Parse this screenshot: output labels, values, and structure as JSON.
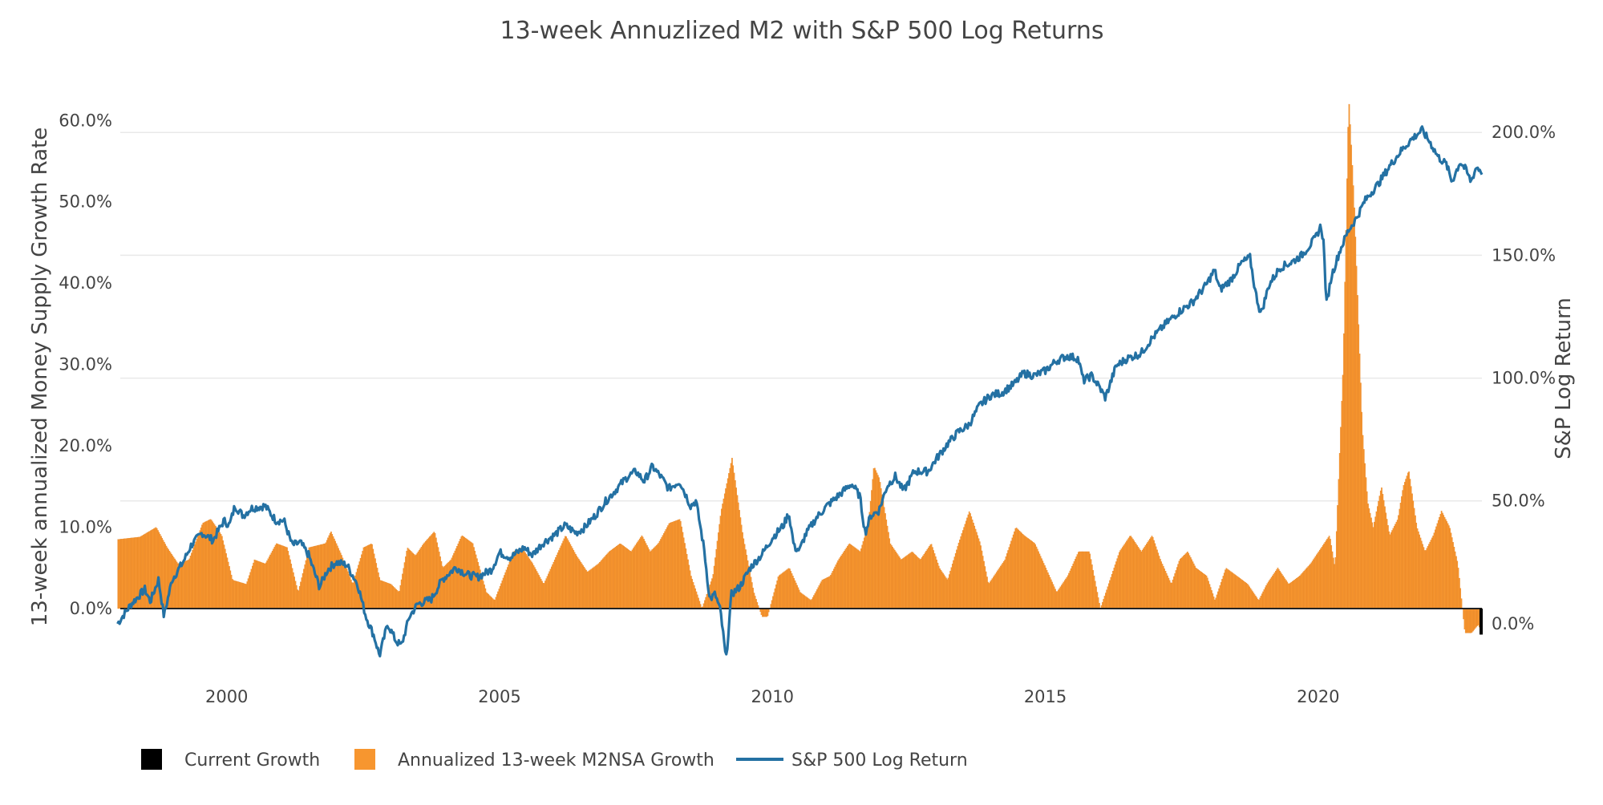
{
  "chart_data": {
    "type": "bar+line",
    "title": "13-week Annuzlized M2 with S&P 500 Log Returns",
    "x_axis": {
      "type": "date",
      "range": [
        1998.05,
        2023.0
      ],
      "tick_labels": [
        "2000",
        "2005",
        "2010",
        "2015",
        "2020"
      ],
      "tick_values": [
        2000,
        2005,
        2010,
        2015,
        2020
      ]
    },
    "y_left": {
      "label": "13-week annualized Money Supply Growth Rate",
      "range": [
        -7.0,
        62.0
      ],
      "tick_values": [
        0,
        10,
        20,
        30,
        40,
        50,
        60
      ],
      "tick_labels": [
        "0.0%",
        "10.0%",
        "20.0%",
        "30.0%",
        "40.0%",
        "50.0%",
        "60.0%"
      ]
    },
    "y_right": {
      "label": "S&P Log Return",
      "range": [
        -17.0,
        211.5
      ],
      "tick_values": [
        0,
        50,
        100,
        150,
        200
      ],
      "tick_labels": [
        "0.0%",
        "50.0%",
        "100.0%",
        "150.0%",
        "200.0%"
      ]
    },
    "legend": {
      "placement": "bottom-left",
      "items": [
        {
          "label": "Current Growth",
          "kind": "box",
          "color": "#000000"
        },
        {
          "label": "Annualized 13-week M2NSA Growth",
          "kind": "box",
          "color": "#f7962f"
        },
        {
          "label": "S&P 500 Log Return",
          "kind": "line",
          "color": "#2471a3"
        }
      ]
    },
    "series": [
      {
        "name": "Annualized 13-week M2NSA Growth",
        "type": "bar",
        "axis": "left",
        "color": "#f7962f",
        "points": [
          [
            1998.0,
            8.5
          ],
          [
            1998.4,
            8.8
          ],
          [
            1998.7,
            10
          ],
          [
            1998.9,
            7.5
          ],
          [
            1999.1,
            5.5
          ],
          [
            1999.3,
            6
          ],
          [
            1999.55,
            10.5
          ],
          [
            1999.7,
            11
          ],
          [
            1999.9,
            9
          ],
          [
            2000.1,
            3.5
          ],
          [
            2000.35,
            3
          ],
          [
            2000.5,
            6
          ],
          [
            2000.7,
            5.5
          ],
          [
            2000.9,
            8
          ],
          [
            2001.1,
            7.5
          ],
          [
            2001.3,
            2
          ],
          [
            2001.5,
            7.5
          ],
          [
            2001.8,
            8
          ],
          [
            2001.9,
            9.5
          ],
          [
            2002.1,
            6.5
          ],
          [
            2002.3,
            3
          ],
          [
            2002.5,
            7.5
          ],
          [
            2002.65,
            8
          ],
          [
            2002.8,
            3.5
          ],
          [
            2003.0,
            3
          ],
          [
            2003.15,
            2
          ],
          [
            2003.3,
            7.5
          ],
          [
            2003.45,
            6.5
          ],
          [
            2003.6,
            8
          ],
          [
            2003.8,
            9.5
          ],
          [
            2003.95,
            5
          ],
          [
            2004.1,
            6
          ],
          [
            2004.3,
            9
          ],
          [
            2004.5,
            8
          ],
          [
            2004.75,
            2
          ],
          [
            2004.9,
            1
          ],
          [
            2005.1,
            4.5
          ],
          [
            2005.25,
            7
          ],
          [
            2005.4,
            7.5
          ],
          [
            2005.6,
            5.5
          ],
          [
            2005.8,
            3
          ],
          [
            2006.0,
            6
          ],
          [
            2006.2,
            9
          ],
          [
            2006.4,
            6.5
          ],
          [
            2006.6,
            4.5
          ],
          [
            2006.8,
            5.5
          ],
          [
            2007.0,
            7
          ],
          [
            2007.2,
            8
          ],
          [
            2007.4,
            7
          ],
          [
            2007.6,
            9
          ],
          [
            2007.75,
            7
          ],
          [
            2007.9,
            8
          ],
          [
            2008.1,
            10.5
          ],
          [
            2008.3,
            11
          ],
          [
            2008.5,
            4
          ],
          [
            2008.7,
            0
          ],
          [
            2008.9,
            4
          ],
          [
            2009.05,
            12
          ],
          [
            2009.25,
            18.5
          ],
          [
            2009.45,
            9
          ],
          [
            2009.65,
            2
          ],
          [
            2009.8,
            -1
          ],
          [
            2009.9,
            -1
          ],
          [
            2010.1,
            4
          ],
          [
            2010.3,
            5
          ],
          [
            2010.5,
            2
          ],
          [
            2010.7,
            1
          ],
          [
            2010.9,
            3.5
          ],
          [
            2011.05,
            4
          ],
          [
            2011.2,
            6
          ],
          [
            2011.4,
            8
          ],
          [
            2011.6,
            7
          ],
          [
            2011.75,
            10.5
          ],
          [
            2011.85,
            17.5
          ],
          [
            2011.95,
            16
          ],
          [
            2012.15,
            8
          ],
          [
            2012.35,
            6
          ],
          [
            2012.55,
            7
          ],
          [
            2012.7,
            6
          ],
          [
            2012.9,
            8
          ],
          [
            2013.05,
            5
          ],
          [
            2013.2,
            3.5
          ],
          [
            2013.4,
            8
          ],
          [
            2013.6,
            12
          ],
          [
            2013.8,
            8
          ],
          [
            2013.95,
            3
          ],
          [
            2014.1,
            4.5
          ],
          [
            2014.25,
            6
          ],
          [
            2014.45,
            10
          ],
          [
            2014.6,
            9
          ],
          [
            2014.8,
            8
          ],
          [
            2015.0,
            5
          ],
          [
            2015.2,
            2
          ],
          [
            2015.4,
            4
          ],
          [
            2015.6,
            7
          ],
          [
            2015.8,
            7
          ],
          [
            2016.0,
            0
          ],
          [
            2016.2,
            4
          ],
          [
            2016.35,
            7
          ],
          [
            2016.55,
            9
          ],
          [
            2016.75,
            7
          ],
          [
            2016.95,
            9
          ],
          [
            2017.1,
            6
          ],
          [
            2017.3,
            3
          ],
          [
            2017.45,
            6
          ],
          [
            2017.6,
            7
          ],
          [
            2017.75,
            5
          ],
          [
            2017.95,
            4
          ],
          [
            2018.1,
            1
          ],
          [
            2018.3,
            5
          ],
          [
            2018.5,
            4
          ],
          [
            2018.7,
            3
          ],
          [
            2018.9,
            1
          ],
          [
            2019.05,
            3
          ],
          [
            2019.25,
            5
          ],
          [
            2019.45,
            3
          ],
          [
            2019.65,
            4
          ],
          [
            2019.85,
            5.5
          ],
          [
            2020.0,
            7
          ],
          [
            2020.2,
            9
          ],
          [
            2020.3,
            5
          ],
          [
            2020.45,
            30
          ],
          [
            2020.55,
            63
          ],
          [
            2020.65,
            50
          ],
          [
            2020.8,
            22
          ],
          [
            2020.9,
            13
          ],
          [
            2021.0,
            10
          ],
          [
            2021.15,
            15
          ],
          [
            2021.3,
            9
          ],
          [
            2021.45,
            11
          ],
          [
            2021.55,
            15
          ],
          [
            2021.65,
            17
          ],
          [
            2021.8,
            10
          ],
          [
            2021.95,
            7
          ],
          [
            2022.1,
            9
          ],
          [
            2022.25,
            12
          ],
          [
            2022.4,
            10
          ],
          [
            2022.55,
            5.5
          ],
          [
            2022.68,
            -3
          ],
          [
            2022.8,
            -3
          ],
          [
            2022.92,
            -2
          ],
          [
            2023.0,
            -3
          ]
        ]
      },
      {
        "name": "S&P 500 Log Return",
        "type": "line",
        "axis": "right",
        "color": "#2471a3",
        "points": [
          [
            1998.0,
            0
          ],
          [
            1998.25,
            8
          ],
          [
            1998.5,
            14
          ],
          [
            1998.6,
            9
          ],
          [
            1998.75,
            18
          ],
          [
            1998.85,
            3
          ],
          [
            1999.0,
            18
          ],
          [
            1999.2,
            25
          ],
          [
            1999.35,
            32
          ],
          [
            1999.55,
            37
          ],
          [
            1999.75,
            34
          ],
          [
            1999.95,
            42
          ],
          [
            2000.05,
            40
          ],
          [
            2000.15,
            48
          ],
          [
            2000.3,
            44
          ],
          [
            2000.45,
            47
          ],
          [
            2000.7,
            48
          ],
          [
            2000.9,
            42
          ],
          [
            2001.05,
            42
          ],
          [
            2001.2,
            32
          ],
          [
            2001.35,
            33
          ],
          [
            2001.5,
            28
          ],
          [
            2001.7,
            15
          ],
          [
            2001.85,
            22
          ],
          [
            2002.0,
            25
          ],
          [
            2002.2,
            24
          ],
          [
            2002.4,
            16
          ],
          [
            2002.55,
            3
          ],
          [
            2002.7,
            -5
          ],
          [
            2002.8,
            -13
          ],
          [
            2002.95,
            0
          ],
          [
            2003.1,
            -7
          ],
          [
            2003.2,
            -9
          ],
          [
            2003.35,
            3
          ],
          [
            2003.5,
            8
          ],
          [
            2003.75,
            10
          ],
          [
            2003.95,
            18
          ],
          [
            2004.2,
            23
          ],
          [
            2004.4,
            20
          ],
          [
            2004.6,
            19
          ],
          [
            2004.85,
            22
          ],
          [
            2005.0,
            29
          ],
          [
            2005.2,
            27
          ],
          [
            2005.45,
            31
          ],
          [
            2005.6,
            28
          ],
          [
            2005.8,
            33
          ],
          [
            2006.0,
            36
          ],
          [
            2006.2,
            40
          ],
          [
            2006.4,
            37
          ],
          [
            2006.55,
            39
          ],
          [
            2006.75,
            44
          ],
          [
            2006.95,
            50
          ],
          [
            2007.15,
            55
          ],
          [
            2007.35,
            60
          ],
          [
            2007.5,
            62
          ],
          [
            2007.65,
            58
          ],
          [
            2007.8,
            64
          ],
          [
            2007.95,
            60
          ],
          [
            2008.1,
            55
          ],
          [
            2008.3,
            58
          ],
          [
            2008.5,
            48
          ],
          [
            2008.6,
            50
          ],
          [
            2008.75,
            30
          ],
          [
            2008.85,
            10
          ],
          [
            2008.95,
            12
          ],
          [
            2009.05,
            5
          ],
          [
            2009.15,
            -15
          ],
          [
            2009.25,
            12
          ],
          [
            2009.4,
            15
          ],
          [
            2009.6,
            23
          ],
          [
            2009.8,
            28
          ],
          [
            2010.0,
            35
          ],
          [
            2010.2,
            40
          ],
          [
            2010.3,
            45
          ],
          [
            2010.4,
            31
          ],
          [
            2010.5,
            30
          ],
          [
            2010.6,
            36
          ],
          [
            2010.8,
            43
          ],
          [
            2011.0,
            48
          ],
          [
            2011.2,
            52
          ],
          [
            2011.45,
            57
          ],
          [
            2011.6,
            52
          ],
          [
            2011.7,
            37
          ],
          [
            2011.8,
            44
          ],
          [
            2011.95,
            46
          ],
          [
            2012.1,
            56
          ],
          [
            2012.25,
            60
          ],
          [
            2012.4,
            54
          ],
          [
            2012.6,
            62
          ],
          [
            2012.85,
            62
          ],
          [
            2013.0,
            67
          ],
          [
            2013.2,
            73
          ],
          [
            2013.4,
            78
          ],
          [
            2013.6,
            81
          ],
          [
            2013.8,
            89
          ],
          [
            2014.0,
            93
          ],
          [
            2014.2,
            94
          ],
          [
            2014.45,
            98
          ],
          [
            2014.6,
            102
          ],
          [
            2014.8,
            101
          ],
          [
            2015.0,
            103
          ],
          [
            2015.2,
            107
          ],
          [
            2015.4,
            109
          ],
          [
            2015.6,
            108
          ],
          [
            2015.7,
            99
          ],
          [
            2015.85,
            101
          ],
          [
            2016.0,
            96
          ],
          [
            2016.1,
            92
          ],
          [
            2016.3,
            105
          ],
          [
            2016.5,
            108
          ],
          [
            2016.75,
            110
          ],
          [
            2016.95,
            116
          ],
          [
            2017.2,
            122
          ],
          [
            2017.45,
            127
          ],
          [
            2017.7,
            131
          ],
          [
            2017.95,
            138
          ],
          [
            2018.1,
            144
          ],
          [
            2018.2,
            136
          ],
          [
            2018.4,
            140
          ],
          [
            2018.6,
            147
          ],
          [
            2018.75,
            149
          ],
          [
            2018.85,
            135
          ],
          [
            2018.95,
            126
          ],
          [
            2019.1,
            138
          ],
          [
            2019.3,
            145
          ],
          [
            2019.5,
            147
          ],
          [
            2019.7,
            150
          ],
          [
            2019.95,
            157
          ],
          [
            2020.05,
            162
          ],
          [
            2020.1,
            155
          ],
          [
            2020.15,
            130
          ],
          [
            2020.25,
            142
          ],
          [
            2020.4,
            152
          ],
          [
            2020.55,
            160
          ],
          [
            2020.7,
            165
          ],
          [
            2020.85,
            172
          ],
          [
            2020.95,
            175
          ],
          [
            2021.1,
            179
          ],
          [
            2021.3,
            186
          ],
          [
            2021.5,
            192
          ],
          [
            2021.7,
            197
          ],
          [
            2021.9,
            201
          ],
          [
            2022.05,
            196
          ],
          [
            2022.2,
            190
          ],
          [
            2022.35,
            187
          ],
          [
            2022.45,
            180
          ],
          [
            2022.6,
            188
          ],
          [
            2022.7,
            185
          ],
          [
            2022.8,
            180
          ],
          [
            2022.9,
            186
          ],
          [
            2023.0,
            184
          ]
        ]
      },
      {
        "name": "Current Growth",
        "type": "bar",
        "axis": "left",
        "color": "#000000",
        "points": [
          [
            2023.0,
            -3.2
          ]
        ]
      }
    ]
  }
}
